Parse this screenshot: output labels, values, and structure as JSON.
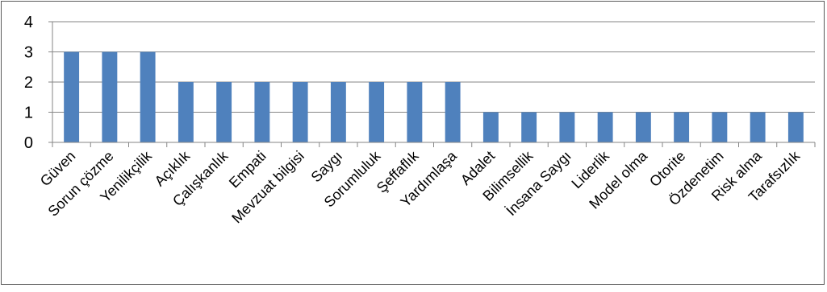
{
  "chart_data": {
    "type": "bar",
    "title": "",
    "xlabel": "",
    "ylabel": "",
    "categories": [
      "Güven",
      "Sorun çözme",
      "Yenilikçilik",
      "Açıklık",
      "Çalışkanlık",
      "Empati",
      "Mevzuat bilgisi",
      "Saygı",
      "Sorumluluk",
      "Şeffaflık",
      "Yardımlaşa",
      "Adalet",
      "Bilimsellik",
      "İnsana Saygı",
      "Liderlik",
      "Model olma",
      "Otorite",
      "Özdenetim",
      "Risk alma",
      "Tarafsızlık"
    ],
    "values": [
      3,
      3,
      3,
      2,
      2,
      2,
      2,
      2,
      2,
      2,
      2,
      1,
      1,
      1,
      1,
      1,
      1,
      1,
      1,
      1
    ],
    "ylim": [
      0,
      4
    ],
    "yticks": [
      "0",
      "1",
      "2",
      "3",
      "4"
    ],
    "grid": true,
    "legend": "none",
    "bar_color": "#4f81bd",
    "grid_color": "#868686",
    "axis_color": "#868686"
  }
}
